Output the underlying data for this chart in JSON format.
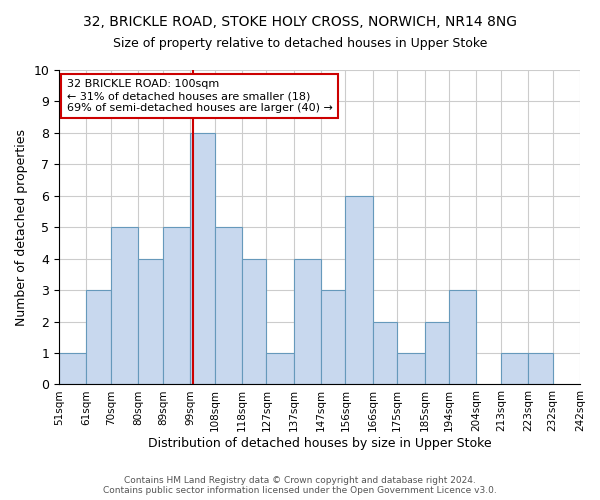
{
  "title1": "32, BRICKLE ROAD, STOKE HOLY CROSS, NORWICH, NR14 8NG",
  "title2": "Size of property relative to detached houses in Upper Stoke",
  "xlabel": "Distribution of detached houses by size in Upper Stoke",
  "ylabel": "Number of detached properties",
  "bin_labels": [
    "51sqm",
    "61sqm",
    "70sqm",
    "80sqm",
    "89sqm",
    "99sqm",
    "108sqm",
    "118sqm",
    "127sqm",
    "137sqm",
    "147sqm",
    "156sqm",
    "166sqm",
    "175sqm",
    "185sqm",
    "194sqm",
    "204sqm",
    "213sqm",
    "223sqm",
    "232sqm",
    "242sqm"
  ],
  "bar_values": [
    1,
    3,
    5,
    4,
    5,
    8,
    5,
    4,
    1,
    4,
    3,
    6,
    2,
    1,
    2,
    3,
    0,
    1,
    1,
    0
  ],
  "bar_edges": [
    51,
    61,
    70,
    80,
    89,
    99,
    108,
    118,
    127,
    137,
    147,
    156,
    166,
    175,
    185,
    194,
    204,
    213,
    223,
    232,
    242
  ],
  "subject_value": 100,
  "annotation_title": "32 BRICKLE ROAD: 100sqm",
  "annotation_line1": "← 31% of detached houses are smaller (18)",
  "annotation_line2": "69% of semi-detached houses are larger (40) →",
  "bar_color": "#c8d8ee",
  "bar_edge_color": "#6699bb",
  "vline_color": "#cc0000",
  "annotation_box_color": "#cc0000",
  "ylim": [
    0,
    10
  ],
  "yticks": [
    0,
    1,
    2,
    3,
    4,
    5,
    6,
    7,
    8,
    9,
    10
  ],
  "footer1": "Contains HM Land Registry data © Crown copyright and database right 2024.",
  "footer2": "Contains public sector information licensed under the Open Government Licence v3.0."
}
